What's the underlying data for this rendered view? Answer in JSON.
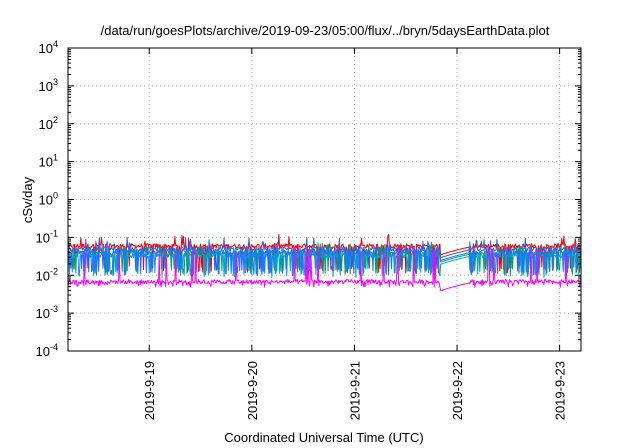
{
  "chart_data": {
    "type": "line",
    "title": "/data/run/goesPlots/archive/2019-09-23/05:00/flux/../bryn/5daysEarthData.plot",
    "xlabel": "Coordinated Universal Time (UTC)",
    "ylabel": "cSv/day",
    "y_scale": "log",
    "ylim": [
      0.0001,
      10000
    ],
    "y_ticks": [
      {
        "value": 0.0001,
        "base": "10",
        "exp": "-4"
      },
      {
        "value": 0.001,
        "base": "10",
        "exp": "-3"
      },
      {
        "value": 0.01,
        "base": "10",
        "exp": "-2"
      },
      {
        "value": 0.1,
        "base": "10",
        "exp": "-1"
      },
      {
        "value": 1,
        "base": "10",
        "exp": "0"
      },
      {
        "value": 10,
        "base": "10",
        "exp": "1"
      },
      {
        "value": 100,
        "base": "10",
        "exp": "2"
      },
      {
        "value": 1000,
        "base": "10",
        "exp": "3"
      },
      {
        "value": 10000,
        "base": "10",
        "exp": "4"
      }
    ],
    "xlim": [
      "2019-09-18 05:00",
      "2019-09-23 05:00"
    ],
    "x_ticks": [
      {
        "value": "2019-09-19 00:00",
        "label": "2019-9-19"
      },
      {
        "value": "2019-09-20 00:00",
        "label": "2019-9-20"
      },
      {
        "value": "2019-09-21 00:00",
        "label": "2019-9-21"
      },
      {
        "value": "2019-09-22 00:00",
        "label": "2019-9-22"
      },
      {
        "value": "2019-09-23 00:00",
        "label": "2019-9-23"
      }
    ],
    "grid": true,
    "data_gaps": [
      [
        "2019-09-21 20:00",
        "2019-09-22 03:00"
      ]
    ],
    "series": [
      {
        "color": "#ff0000",
        "base": 0.062,
        "low": 0.047,
        "high": 0.11,
        "drop": 0.014,
        "drop_rate": 0.12
      },
      {
        "color": "#2f5fd0",
        "base": 0.052,
        "low": 0.04,
        "high": 0.095,
        "drop": 0.013,
        "drop_rate": 0.12
      },
      {
        "color": "#00a651",
        "base": 0.04,
        "low": 0.031,
        "high": 0.07,
        "drop": 0.012,
        "drop_rate": 0.12
      },
      {
        "color": "#00a0e0",
        "base": 0.035,
        "low": 0.026,
        "high": 0.065,
        "drop": 0.011,
        "drop_rate": 0.12
      },
      {
        "color": "#1e73ff",
        "base": 0.044,
        "low": 0.033,
        "high": 0.08,
        "drop": 0.012,
        "drop_rate": 0.12
      },
      {
        "color": "#ff00ff",
        "base": 0.007,
        "low": 0.0055,
        "high": 0.05,
        "drop": 0.006,
        "drop_rate": 0.35
      }
    ]
  }
}
